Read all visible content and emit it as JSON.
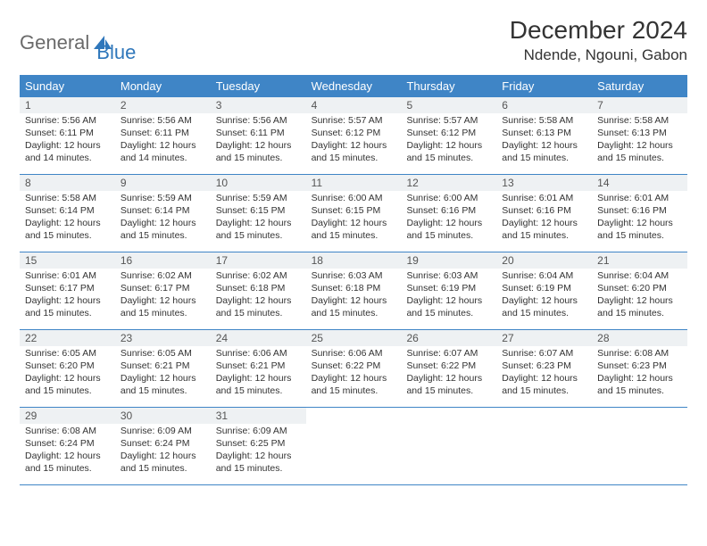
{
  "logo": {
    "text1": "General",
    "text2": "Blue",
    "sail_color": "#2f77bb"
  },
  "title": "December 2024",
  "location": "Ndende, Ngouni, Gabon",
  "colors": {
    "header_bg": "#3f85c6",
    "header_text": "#ffffff",
    "daynum_bg": "#eef1f3",
    "row_border": "#3f85c6",
    "body_text": "#333333"
  },
  "fonts": {
    "title_size": 28,
    "location_size": 17,
    "dayhead_size": 13,
    "daynum_size": 12,
    "body_size": 10.5
  },
  "day_names": [
    "Sunday",
    "Monday",
    "Tuesday",
    "Wednesday",
    "Thursday",
    "Friday",
    "Saturday"
  ],
  "weeks": [
    [
      {
        "n": "1",
        "sr": "Sunrise: 5:56 AM",
        "ss": "Sunset: 6:11 PM",
        "d1": "Daylight: 12 hours",
        "d2": "and 14 minutes."
      },
      {
        "n": "2",
        "sr": "Sunrise: 5:56 AM",
        "ss": "Sunset: 6:11 PM",
        "d1": "Daylight: 12 hours",
        "d2": "and 14 minutes."
      },
      {
        "n": "3",
        "sr": "Sunrise: 5:56 AM",
        "ss": "Sunset: 6:11 PM",
        "d1": "Daylight: 12 hours",
        "d2": "and 15 minutes."
      },
      {
        "n": "4",
        "sr": "Sunrise: 5:57 AM",
        "ss": "Sunset: 6:12 PM",
        "d1": "Daylight: 12 hours",
        "d2": "and 15 minutes."
      },
      {
        "n": "5",
        "sr": "Sunrise: 5:57 AM",
        "ss": "Sunset: 6:12 PM",
        "d1": "Daylight: 12 hours",
        "d2": "and 15 minutes."
      },
      {
        "n": "6",
        "sr": "Sunrise: 5:58 AM",
        "ss": "Sunset: 6:13 PM",
        "d1": "Daylight: 12 hours",
        "d2": "and 15 minutes."
      },
      {
        "n": "7",
        "sr": "Sunrise: 5:58 AM",
        "ss": "Sunset: 6:13 PM",
        "d1": "Daylight: 12 hours",
        "d2": "and 15 minutes."
      }
    ],
    [
      {
        "n": "8",
        "sr": "Sunrise: 5:58 AM",
        "ss": "Sunset: 6:14 PM",
        "d1": "Daylight: 12 hours",
        "d2": "and 15 minutes."
      },
      {
        "n": "9",
        "sr": "Sunrise: 5:59 AM",
        "ss": "Sunset: 6:14 PM",
        "d1": "Daylight: 12 hours",
        "d2": "and 15 minutes."
      },
      {
        "n": "10",
        "sr": "Sunrise: 5:59 AM",
        "ss": "Sunset: 6:15 PM",
        "d1": "Daylight: 12 hours",
        "d2": "and 15 minutes."
      },
      {
        "n": "11",
        "sr": "Sunrise: 6:00 AM",
        "ss": "Sunset: 6:15 PM",
        "d1": "Daylight: 12 hours",
        "d2": "and 15 minutes."
      },
      {
        "n": "12",
        "sr": "Sunrise: 6:00 AM",
        "ss": "Sunset: 6:16 PM",
        "d1": "Daylight: 12 hours",
        "d2": "and 15 minutes."
      },
      {
        "n": "13",
        "sr": "Sunrise: 6:01 AM",
        "ss": "Sunset: 6:16 PM",
        "d1": "Daylight: 12 hours",
        "d2": "and 15 minutes."
      },
      {
        "n": "14",
        "sr": "Sunrise: 6:01 AM",
        "ss": "Sunset: 6:16 PM",
        "d1": "Daylight: 12 hours",
        "d2": "and 15 minutes."
      }
    ],
    [
      {
        "n": "15",
        "sr": "Sunrise: 6:01 AM",
        "ss": "Sunset: 6:17 PM",
        "d1": "Daylight: 12 hours",
        "d2": "and 15 minutes."
      },
      {
        "n": "16",
        "sr": "Sunrise: 6:02 AM",
        "ss": "Sunset: 6:17 PM",
        "d1": "Daylight: 12 hours",
        "d2": "and 15 minutes."
      },
      {
        "n": "17",
        "sr": "Sunrise: 6:02 AM",
        "ss": "Sunset: 6:18 PM",
        "d1": "Daylight: 12 hours",
        "d2": "and 15 minutes."
      },
      {
        "n": "18",
        "sr": "Sunrise: 6:03 AM",
        "ss": "Sunset: 6:18 PM",
        "d1": "Daylight: 12 hours",
        "d2": "and 15 minutes."
      },
      {
        "n": "19",
        "sr": "Sunrise: 6:03 AM",
        "ss": "Sunset: 6:19 PM",
        "d1": "Daylight: 12 hours",
        "d2": "and 15 minutes."
      },
      {
        "n": "20",
        "sr": "Sunrise: 6:04 AM",
        "ss": "Sunset: 6:19 PM",
        "d1": "Daylight: 12 hours",
        "d2": "and 15 minutes."
      },
      {
        "n": "21",
        "sr": "Sunrise: 6:04 AM",
        "ss": "Sunset: 6:20 PM",
        "d1": "Daylight: 12 hours",
        "d2": "and 15 minutes."
      }
    ],
    [
      {
        "n": "22",
        "sr": "Sunrise: 6:05 AM",
        "ss": "Sunset: 6:20 PM",
        "d1": "Daylight: 12 hours",
        "d2": "and 15 minutes."
      },
      {
        "n": "23",
        "sr": "Sunrise: 6:05 AM",
        "ss": "Sunset: 6:21 PM",
        "d1": "Daylight: 12 hours",
        "d2": "and 15 minutes."
      },
      {
        "n": "24",
        "sr": "Sunrise: 6:06 AM",
        "ss": "Sunset: 6:21 PM",
        "d1": "Daylight: 12 hours",
        "d2": "and 15 minutes."
      },
      {
        "n": "25",
        "sr": "Sunrise: 6:06 AM",
        "ss": "Sunset: 6:22 PM",
        "d1": "Daylight: 12 hours",
        "d2": "and 15 minutes."
      },
      {
        "n": "26",
        "sr": "Sunrise: 6:07 AM",
        "ss": "Sunset: 6:22 PM",
        "d1": "Daylight: 12 hours",
        "d2": "and 15 minutes."
      },
      {
        "n": "27",
        "sr": "Sunrise: 6:07 AM",
        "ss": "Sunset: 6:23 PM",
        "d1": "Daylight: 12 hours",
        "d2": "and 15 minutes."
      },
      {
        "n": "28",
        "sr": "Sunrise: 6:08 AM",
        "ss": "Sunset: 6:23 PM",
        "d1": "Daylight: 12 hours",
        "d2": "and 15 minutes."
      }
    ],
    [
      {
        "n": "29",
        "sr": "Sunrise: 6:08 AM",
        "ss": "Sunset: 6:24 PM",
        "d1": "Daylight: 12 hours",
        "d2": "and 15 minutes."
      },
      {
        "n": "30",
        "sr": "Sunrise: 6:09 AM",
        "ss": "Sunset: 6:24 PM",
        "d1": "Daylight: 12 hours",
        "d2": "and 15 minutes."
      },
      {
        "n": "31",
        "sr": "Sunrise: 6:09 AM",
        "ss": "Sunset: 6:25 PM",
        "d1": "Daylight: 12 hours",
        "d2": "and 15 minutes."
      },
      null,
      null,
      null,
      null
    ]
  ]
}
